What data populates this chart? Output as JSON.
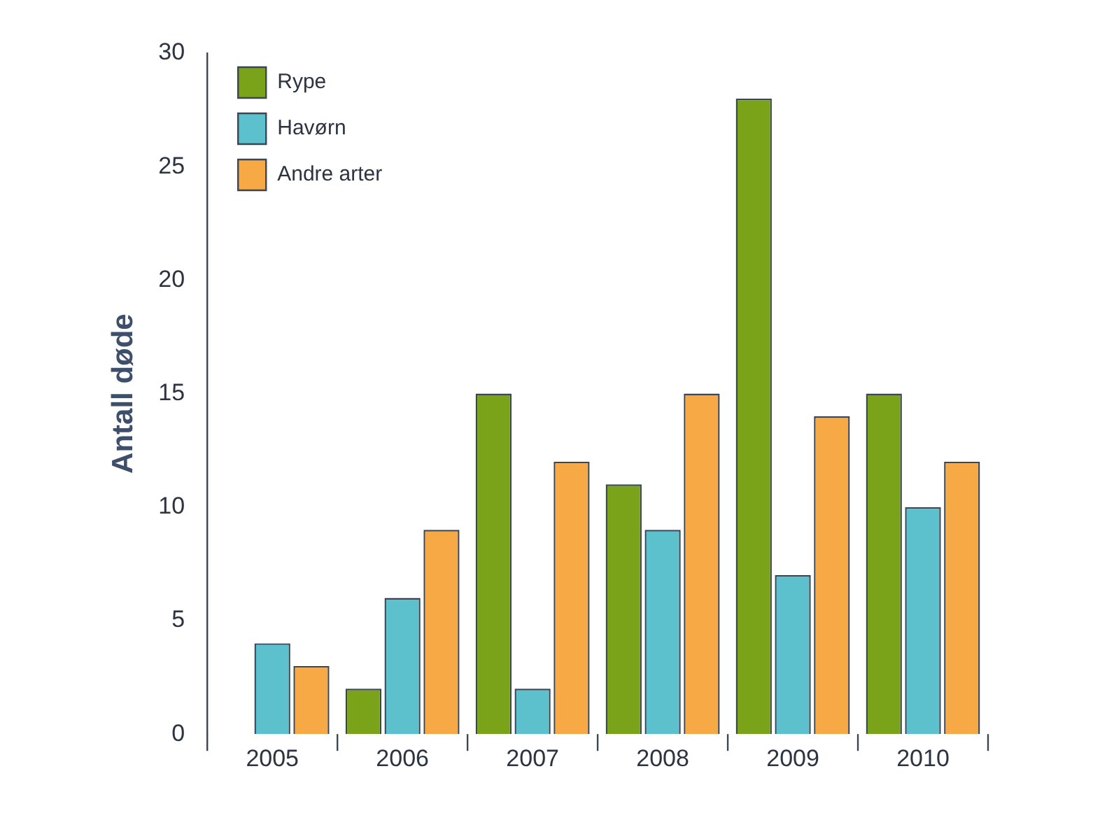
{
  "chart_data": {
    "type": "bar",
    "ylabel": "Antall døde",
    "categories": [
      "2005",
      "2006",
      "2007",
      "2008",
      "2009",
      "2010"
    ],
    "series": [
      {
        "name": "Rype",
        "color": "#7aa31a",
        "values": [
          0,
          2,
          15,
          11,
          28,
          15
        ]
      },
      {
        "name": "Havørn",
        "color": "#5dc1cd",
        "values": [
          4,
          6,
          2,
          9,
          7,
          10
        ]
      },
      {
        "name": "Andre arter",
        "color": "#f6a945",
        "values": [
          3,
          9,
          12,
          15,
          14,
          12
        ]
      }
    ],
    "ylim": [
      0,
      30
    ],
    "yticks": [
      0,
      5,
      10,
      15,
      20,
      25,
      30
    ],
    "grid": false,
    "legend": "top left"
  }
}
